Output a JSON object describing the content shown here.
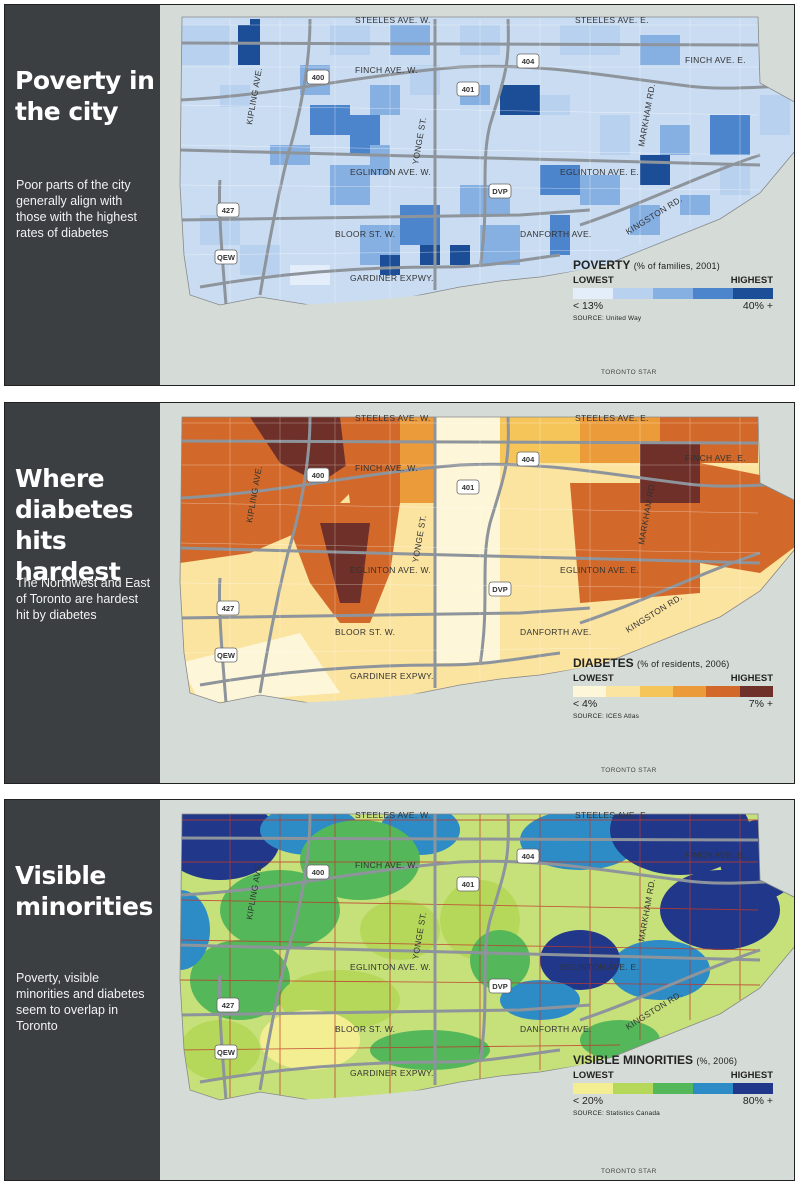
{
  "panels": [
    {
      "title": "Poverty in the city",
      "body": "Poor parts of the city generally align with those with the highest rates of diabetes",
      "legend_title": "POVERTY",
      "legend_subtitle": "(% of families, 2001)",
      "legend_low_label": "LOWEST",
      "legend_high_label": "HIGHEST",
      "legend_low_value": "< 13%",
      "legend_high_value": "40% +",
      "source": "SOURCE: United Way",
      "credit": "TORONTO STAR",
      "colors": [
        "#e4eefa",
        "#b8d1ee",
        "#86b0e2",
        "#4d85cc",
        "#1b4e96"
      ],
      "base_color": "#c9dcf2"
    },
    {
      "title": "Where diabetes hits hardest",
      "body": "The Northwest and East of Toronto are hardest hit by diabetes",
      "legend_title": "DIABETES",
      "legend_subtitle": "(% of residents, 2006)",
      "legend_low_label": "LOWEST",
      "legend_high_label": "HIGHEST",
      "legend_low_value": "< 4%",
      "legend_high_value": "7% +",
      "source": "SOURCE: ICES Atlas",
      "credit": "TORONTO STAR",
      "colors": [
        "#fdf6d8",
        "#fbe3a0",
        "#f6c55a",
        "#ec9b3a",
        "#d2692a",
        "#6e3028"
      ],
      "base_color": "#fbe3a0"
    },
    {
      "title": "Visible minorities",
      "body": "Poverty, visible minorities and diabetes seem to overlap in Toronto",
      "legend_title": "VISIBLE MINORITIES",
      "legend_subtitle": "(%, 2006)",
      "legend_low_label": "LOWEST",
      "legend_high_label": "HIGHEST",
      "legend_low_value": "< 20%",
      "legend_high_value": "80% +",
      "source": "SOURCE: Statistics Canada",
      "credit": "TORONTO STAR",
      "colors": [
        "#f4ee92",
        "#b6d85a",
        "#54b75a",
        "#2d8bc6",
        "#20378a"
      ],
      "base_color": "#c6e07a"
    }
  ],
  "map_labels": {
    "steeles_w": "STEELES AVE. W.",
    "steeles_e": "STEELES AVE. E.",
    "finch_w": "FINCH AVE. W.",
    "finch_e": "FINCH AVE. E.",
    "eglinton_w": "EGLINTON AVE. W.",
    "eglinton_e": "EGLINTON AVE. E.",
    "bloor": "BLOOR ST. W.",
    "danforth": "DANFORTH AVE.",
    "gardiner": "GARDINER EXPWY.",
    "yonge": "YONGE ST.",
    "kipling": "KIPLING AVE.",
    "markham": "MARKHAM RD.",
    "kingston": "KINGSTON RD.",
    "dvp": "DVP",
    "qew": "QEW",
    "hwy_400": "400",
    "hwy_401": "401",
    "hwy_404": "404",
    "hwy_427": "427"
  }
}
